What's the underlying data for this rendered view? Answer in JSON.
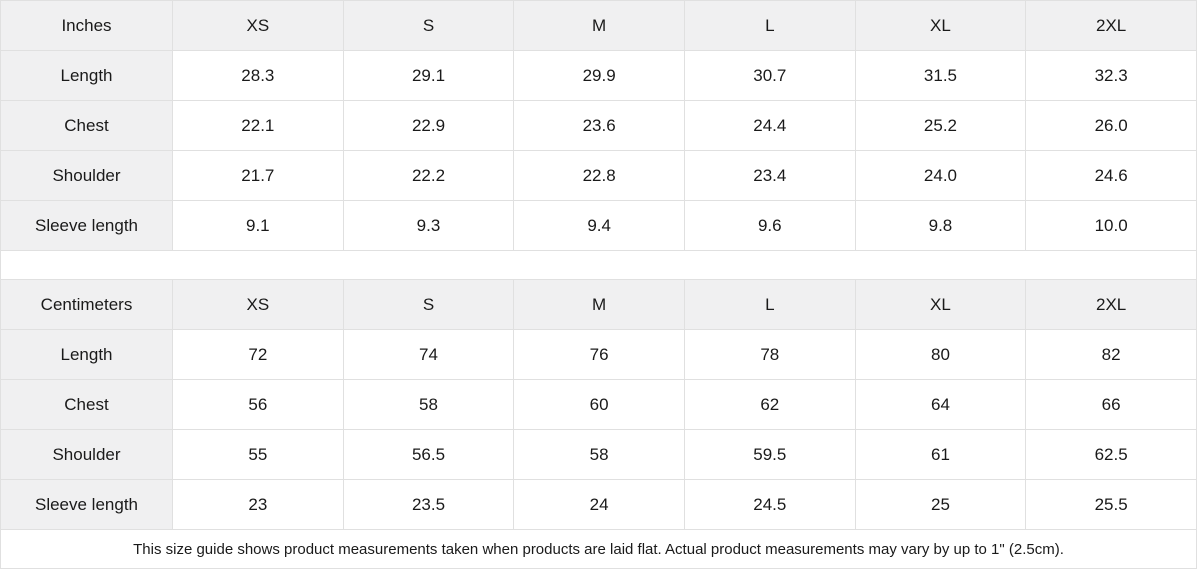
{
  "size_guide": {
    "sizes": [
      "XS",
      "S",
      "M",
      "L",
      "XL",
      "2XL"
    ],
    "tables": [
      {
        "unit_label": "Inches",
        "rows": [
          {
            "label": "Length",
            "values": [
              "28.3",
              "29.1",
              "29.9",
              "30.7",
              "31.5",
              "32.3"
            ]
          },
          {
            "label": "Chest",
            "values": [
              "22.1",
              "22.9",
              "23.6",
              "24.4",
              "25.2",
              "26.0"
            ]
          },
          {
            "label": "Shoulder",
            "values": [
              "21.7",
              "22.2",
              "22.8",
              "23.4",
              "24.0",
              "24.6"
            ]
          },
          {
            "label": "Sleeve length",
            "values": [
              "9.1",
              "9.3",
              "9.4",
              "9.6",
              "9.8",
              "10.0"
            ]
          }
        ]
      },
      {
        "unit_label": "Centimeters",
        "rows": [
          {
            "label": "Length",
            "values": [
              "72",
              "74",
              "76",
              "78",
              "80",
              "82"
            ]
          },
          {
            "label": "Chest",
            "values": [
              "56",
              "58",
              "60",
              "62",
              "64",
              "66"
            ]
          },
          {
            "label": "Shoulder",
            "values": [
              "55",
              "56.5",
              "58",
              "59.5",
              "61",
              "62.5"
            ]
          },
          {
            "label": "Sleeve length",
            "values": [
              "23",
              "23.5",
              "24",
              "24.5",
              "25",
              "25.5"
            ]
          }
        ]
      }
    ],
    "footer_note": "This size guide shows product measurements taken when products are laid flat.  Actual product measurements may vary by up to 1\" (2.5cm).",
    "colors": {
      "header_bg": "#f0f0f1",
      "border": "#e0e0e0",
      "text": "#1a1a1a"
    }
  }
}
